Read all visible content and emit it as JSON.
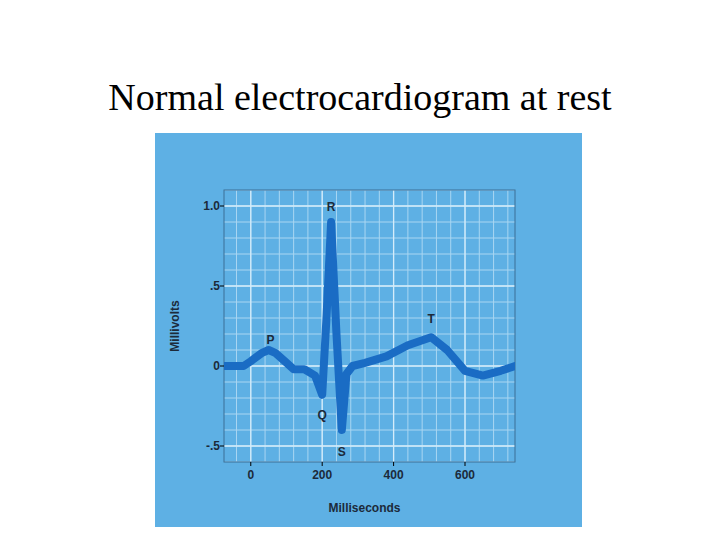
{
  "chart_data": {
    "type": "line",
    "title": "Normal electrocardiogram at rest",
    "x_label": "Milliseconds",
    "y_label": "Millivolts",
    "x": [
      -75,
      -20,
      0,
      30,
      50,
      70,
      100,
      120,
      150,
      180,
      200,
      212,
      225,
      240,
      255,
      268,
      285,
      320,
      380,
      440,
      505,
      550,
      600,
      650,
      700,
      740
    ],
    "values": [
      0,
      0,
      0.03,
      0.08,
      0.1,
      0.08,
      0.02,
      -0.02,
      -0.02,
      -0.06,
      -0.18,
      0.3,
      0.9,
      0.2,
      -0.4,
      -0.05,
      0.0,
      0.02,
      0.06,
      0.13,
      0.18,
      0.1,
      -0.03,
      -0.06,
      -0.03,
      0
    ],
    "color": "#1a6cc4",
    "xlim": [
      -75,
      740
    ],
    "ylim": [
      -0.6,
      1.1
    ],
    "xticks": [
      0,
      200,
      400,
      600
    ],
    "yticks": [
      {
        "value": -0.5,
        "label": "-.5"
      },
      0,
      {
        "value": 0.5,
        "label": ".5"
      },
      {
        "value": 1.0,
        "label": "1.0"
      }
    ],
    "grid": true,
    "annotations": [
      {
        "text": "P",
        "x": 55,
        "y": 0.17
      },
      {
        "text": "Q",
        "x": 200,
        "y": -0.3
      },
      {
        "text": "R",
        "x": 225,
        "y": 1.0
      },
      {
        "text": "S",
        "x": 255,
        "y": -0.53
      },
      {
        "text": "T",
        "x": 505,
        "y": 0.3
      }
    ]
  }
}
